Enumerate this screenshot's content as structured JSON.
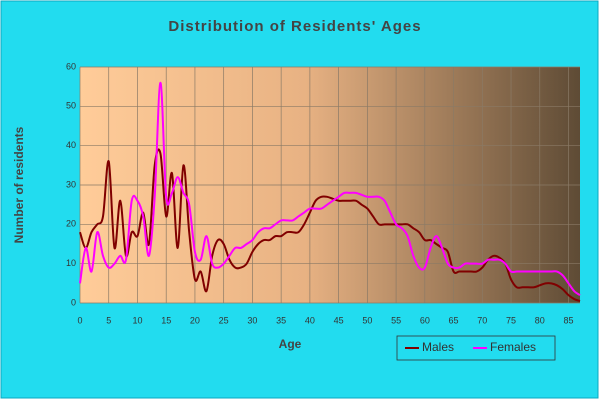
{
  "chart_data": {
    "type": "line",
    "title": "Distribution of Residents' Ages",
    "xlabel": "Age",
    "ylabel": "Number of residents",
    "x": [
      0,
      1,
      2,
      3,
      4,
      5,
      6,
      7,
      8,
      9,
      10,
      11,
      12,
      13,
      14,
      15,
      16,
      17,
      18,
      19,
      20,
      21,
      22,
      23,
      24,
      25,
      26,
      27,
      28,
      29,
      30,
      31,
      32,
      33,
      34,
      35,
      36,
      37,
      38,
      39,
      40,
      41,
      42,
      43,
      44,
      45,
      46,
      47,
      48,
      49,
      50,
      51,
      52,
      53,
      54,
      55,
      56,
      57,
      58,
      59,
      60,
      61,
      62,
      63,
      64,
      65,
      66,
      67,
      68,
      69,
      70,
      71,
      72,
      73,
      74,
      75,
      76,
      77,
      78,
      79,
      80,
      81,
      82,
      83,
      84,
      85,
      86,
      87
    ],
    "series": [
      {
        "name": "Males",
        "color": "#800000",
        "values": [
          18,
          14,
          18,
          20,
          22,
          36,
          14,
          26,
          12,
          18,
          17,
          23,
          15,
          35,
          38,
          22,
          33,
          14,
          35,
          18,
          6,
          8,
          3,
          12,
          16,
          15,
          11,
          9,
          9,
          10,
          13,
          15,
          16,
          16,
          17,
          17,
          18,
          18,
          18,
          20,
          23,
          26,
          27,
          27,
          26.5,
          26,
          26,
          26,
          26,
          25,
          24,
          22,
          20,
          20,
          20,
          20,
          20,
          20,
          19,
          18,
          16,
          16,
          15,
          14,
          13,
          8,
          8,
          8,
          8,
          8,
          9,
          11,
          12,
          11.5,
          10,
          6,
          4,
          4,
          4,
          4,
          4.5,
          5,
          5,
          4.5,
          3.5,
          2,
          1,
          0.5
        ]
      },
      {
        "name": "Females",
        "color": "#ff00ff",
        "values": [
          5,
          14,
          8,
          18,
          12,
          9,
          10,
          12,
          11,
          26,
          26,
          22,
          12,
          27,
          56,
          27,
          28,
          32,
          28,
          25,
          13,
          11,
          17,
          10,
          9,
          10,
          12,
          14,
          14,
          15,
          16,
          18,
          19,
          19,
          20,
          21,
          21,
          21,
          22,
          23,
          24,
          24,
          24,
          25,
          26,
          27,
          28,
          28,
          28,
          27.5,
          27,
          27,
          27,
          26,
          23,
          20,
          19,
          17,
          12,
          9,
          9,
          14,
          17,
          14,
          10,
          9,
          9,
          10,
          10,
          10,
          10,
          11,
          11,
          11,
          10,
          8,
          8,
          8,
          8,
          8,
          8,
          8,
          8,
          8,
          7,
          5,
          3,
          2
        ]
      }
    ],
    "xlim": [
      0,
      87
    ],
    "ylim": [
      0,
      60
    ],
    "xticks": [
      0,
      5,
      10,
      15,
      20,
      25,
      30,
      35,
      40,
      45,
      50,
      55,
      60,
      65,
      70,
      75,
      80,
      85
    ],
    "yticks": [
      0,
      10,
      20,
      30,
      40,
      50,
      60
    ],
    "grid": true,
    "legend": "bottom-right"
  }
}
